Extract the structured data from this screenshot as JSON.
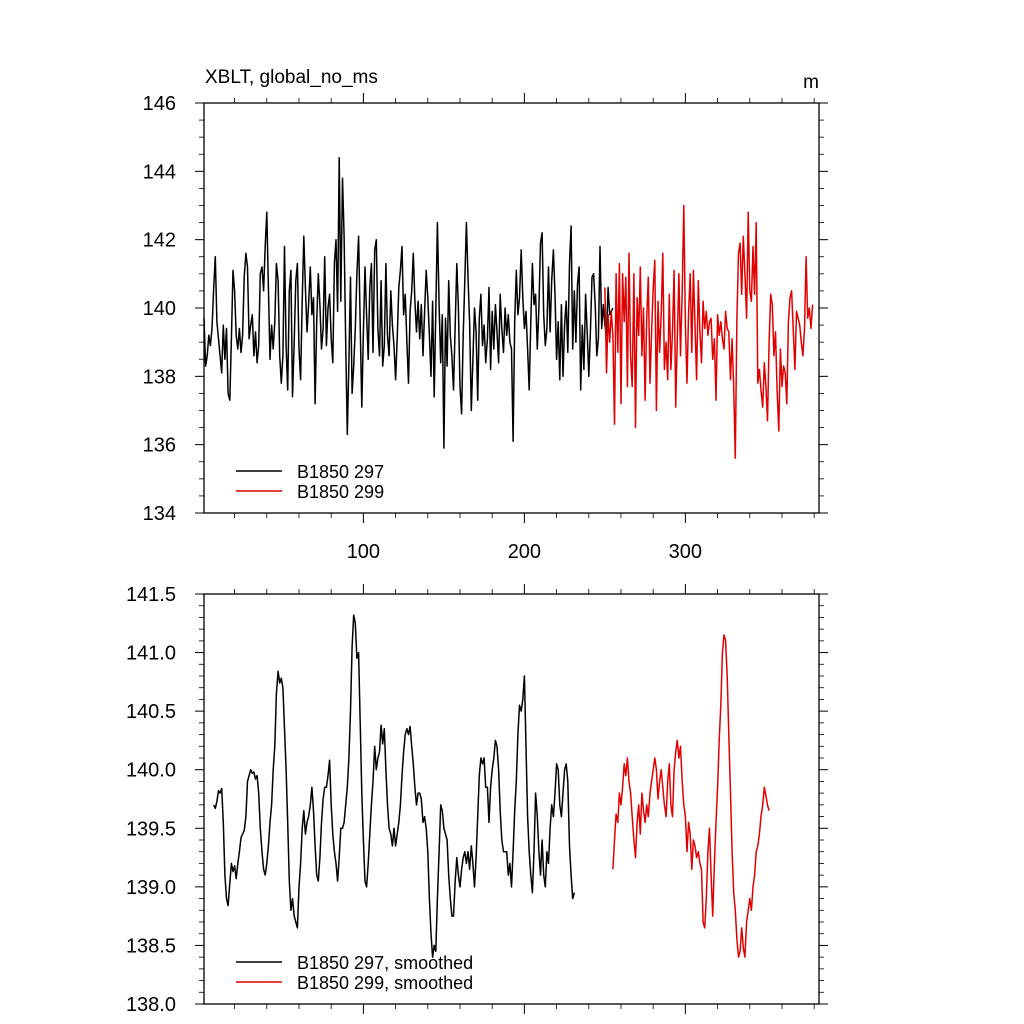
{
  "colors": {
    "series_a": "#000000",
    "series_b": "#e00000",
    "axis": "#000000"
  },
  "chart_data": [
    {
      "type": "line",
      "title": "XBLT, global_no_ms",
      "units": "m",
      "xlim": [
        1,
        383
      ],
      "ylim": [
        134,
        146
      ],
      "xticks": [
        100,
        200,
        300
      ],
      "xtick_labels": [
        "100",
        "200",
        "300"
      ],
      "yticks": [
        134,
        136,
        138,
        140,
        142,
        144,
        146
      ],
      "ytick_labels": [
        "134",
        "136",
        "138",
        "140",
        "142",
        "144",
        "146"
      ],
      "legend_position": "bottom-left",
      "series": [
        {
          "name": "B1850 297",
          "color": "#000000",
          "x_start": 1,
          "values": [
            139.7,
            138.3,
            138.6,
            139.2,
            138.9,
            139.4,
            140.6,
            141.5,
            139.6,
            139.1,
            138.6,
            138.1,
            139.5,
            138.5,
            139.4,
            137.5,
            137.3,
            139.1,
            141.1,
            140.5,
            139.2,
            138.8,
            139.4,
            138.7,
            139.2,
            140.9,
            141.6,
            141.2,
            139.1,
            139.5,
            139.8,
            138.6,
            139.3,
            138.4,
            138.9,
            141.0,
            141.2,
            140.5,
            141.8,
            142.8,
            140.6,
            138.5,
            139.5,
            138.8,
            139.6,
            141.3,
            140.8,
            138.6,
            137.8,
            138.6,
            141.8,
            138.9,
            137.6,
            140.5,
            141.1,
            137.4,
            139.0,
            140.8,
            141.3,
            138.8,
            137.9,
            140.2,
            142.1,
            140.6,
            139.3,
            140.1,
            141.2,
            139.8,
            140.3,
            137.2,
            139.6,
            141.0,
            140.1,
            138.8,
            139.4,
            141.5,
            138.9,
            140.0,
            140.4,
            139.1,
            138.4,
            141.3,
            142.0,
            139.9,
            144.4,
            140.2,
            143.8,
            142.1,
            139.0,
            136.3,
            138.4,
            140.9,
            137.5,
            138.3,
            139.4,
            141.0,
            142.1,
            139.5,
            137.1,
            139.3,
            141.2,
            139.8,
            138.5,
            140.6,
            141.3,
            138.7,
            141.7,
            142.0,
            139.4,
            138.6,
            140.8,
            138.3,
            138.9,
            141.3,
            139.2,
            138.6,
            140.5,
            139.5,
            138.9,
            137.9,
            139.1,
            140.6,
            141.1,
            141.8,
            139.8,
            140.4,
            139.0,
            137.8,
            139.9,
            140.5,
            141.6,
            140.2,
            139.3,
            140.2,
            139.1,
            140.1,
            138.6,
            139.9,
            141.1,
            140.3,
            139.2,
            138.0,
            140.2,
            137.4,
            139.9,
            142.5,
            140.1,
            138.4,
            139.8,
            135.9,
            139.7,
            138.3,
            140.8,
            139.2,
            138.6,
            137.6,
            139.5,
            141.3,
            140.0,
            137.7,
            136.9,
            139.2,
            140.8,
            142.5,
            140.9,
            139.6,
            137.0,
            138.5,
            140.0,
            139.3,
            137.3,
            139.7,
            140.4,
            138.9,
            139.5,
            138.4,
            139.1,
            140.6,
            138.2,
            139.9,
            138.8,
            140.1,
            139.3,
            138.4,
            140.4,
            139.4,
            138.7,
            140.0,
            139.2,
            139.8,
            139.0,
            138.8,
            136.1,
            139.6,
            141.1,
            139.8,
            140.3,
            141.7,
            140.3,
            139.4,
            139.9,
            138.8,
            137.6,
            139.6,
            141.3,
            140.1,
            140.4,
            138.8,
            140.0,
            141.9,
            142.2,
            139.8,
            138.9,
            139.4,
            141.2,
            139.3,
            140.8,
            141.7,
            140.4,
            138.5,
            139.6,
            137.9,
            140.1,
            138.0,
            139.5,
            140.2,
            138.7,
            141.3,
            142.4,
            138.8,
            140.5,
            139.0,
            140.7,
            141.2,
            137.6,
            139.5,
            138.2,
            140.4,
            139.3,
            138.0,
            139.3,
            140.9,
            141.0,
            140.1,
            138.6,
            139.1,
            141.8,
            139.4,
            140.1,
            139.5,
            139.2,
            140.6,
            139.8,
            139.9,
            140.0
          ]
        },
        {
          "name": "B1850 299",
          "color": "#e00000",
          "x_start": 250,
          "values": [
            140.6,
            138.1,
            139.8,
            139.0,
            139.9,
            139.2,
            136.6,
            141.0,
            138.7,
            141.3,
            137.2,
            141.0,
            139.6,
            140.9,
            137.7,
            141.6,
            138.6,
            137.7,
            141.0,
            136.5,
            140.3,
            139.2,
            141.2,
            138.6,
            140.0,
            137.3,
            139.7,
            140.9,
            137.8,
            139.3,
            140.6,
            141.4,
            137.0,
            140.2,
            138.7,
            139.8,
            141.6,
            138.2,
            139.0,
            137.9,
            140.4,
            138.2,
            139.3,
            141.1,
            137.1,
            139.1,
            141.0,
            138.6,
            140.5,
            143.0,
            139.5,
            137.8,
            139.9,
            141.0,
            138.7,
            141.1,
            139.5,
            137.9,
            140.8,
            139.3,
            138.4,
            140.2,
            139.4,
            139.9,
            139.2,
            139.6,
            139.7,
            138.5,
            139.1,
            137.3,
            139.8,
            139.2,
            139.6,
            139.1,
            138.8,
            139.9,
            139.4,
            139.3,
            137.9,
            139.1,
            137.7,
            135.6,
            139.7,
            141.6,
            141.9,
            140.4,
            142.1,
            141.0,
            139.7,
            142.8,
            140.5,
            140.2,
            141.8,
            140.4,
            142.5,
            137.8,
            138.2,
            137.6,
            137.1,
            138.4,
            137.7,
            136.7,
            139.0,
            140.4,
            140.1,
            138.6,
            139.3,
            137.6,
            136.4,
            138.8,
            137.7,
            138.3,
            138.1,
            137.2,
            139.6,
            140.3,
            140.5,
            139.4,
            138.2,
            139.9,
            139.7,
            139.5,
            139.0,
            138.6,
            139.4,
            141.5,
            139.7,
            140.0,
            139.4,
            140.1
          ]
        }
      ]
    },
    {
      "type": "line",
      "xlim": [
        1,
        383
      ],
      "ylim": [
        138.0,
        141.5
      ],
      "xticks": [
        100,
        200,
        300
      ],
      "yticks": [
        138.0,
        138.5,
        139.0,
        139.5,
        140.0,
        140.5,
        141.0,
        141.5
      ],
      "ytick_labels": [
        "138.0",
        "138.5",
        "139.0",
        "139.5",
        "140.0",
        "140.5",
        "141.0",
        "141.5"
      ],
      "legend_position": "bottom-left",
      "series": [
        {
          "name": "B1850 297, smoothed",
          "color": "#000000",
          "x_start": 7,
          "values": [
            139.7,
            139.67,
            139.73,
            139.82,
            139.8,
            139.84,
            139.55,
            139.1,
            138.9,
            138.84,
            139.03,
            139.2,
            139.13,
            139.18,
            139.07,
            139.2,
            139.3,
            139.42,
            139.45,
            139.48,
            139.6,
            139.9,
            139.95,
            140.0,
            139.97,
            139.98,
            139.92,
            139.95,
            139.8,
            139.5,
            139.3,
            139.15,
            139.1,
            139.2,
            139.35,
            139.55,
            139.7,
            140.0,
            140.2,
            140.65,
            140.84,
            140.74,
            140.78,
            140.7,
            140.35,
            140.0,
            139.55,
            139.05,
            138.8,
            138.9,
            138.75,
            138.7,
            138.65,
            139.0,
            139.2,
            139.5,
            139.65,
            139.45,
            139.55,
            139.6,
            139.7,
            139.85,
            139.65,
            139.35,
            139.1,
            139.05,
            139.25,
            139.55,
            139.75,
            139.85,
            139.85,
            139.95,
            140.08,
            139.7,
            139.45,
            139.3,
            139.2,
            139.05,
            139.25,
            139.5,
            139.5,
            139.55,
            139.7,
            139.85,
            140.1,
            140.5,
            141.05,
            141.32,
            141.25,
            140.95,
            141.0,
            140.4,
            139.8,
            139.4,
            139.05,
            139.0,
            139.2,
            139.45,
            139.7,
            139.9,
            140.2,
            140.0,
            140.1,
            140.15,
            140.38,
            140.22,
            140.35,
            140.0,
            139.7,
            139.5,
            139.45,
            139.35,
            139.5,
            139.35,
            139.45,
            139.55,
            139.7,
            139.95,
            140.15,
            140.3,
            140.35,
            140.3,
            140.37,
            140.2,
            140.05,
            139.85,
            139.7,
            139.8,
            139.8,
            139.75,
            139.55,
            139.6,
            139.5,
            139.3,
            138.9,
            138.6,
            138.4,
            138.5,
            138.45,
            138.9,
            139.3,
            139.7,
            139.65,
            139.5,
            139.45,
            139.4,
            139.1,
            138.9,
            138.75,
            138.75,
            139.05,
            139.25,
            139.1,
            139.0,
            139.15,
            139.25,
            139.3,
            139.2,
            139.3,
            139.15,
            139.35,
            139.2,
            139.0,
            139.25,
            139.6,
            139.95,
            140.1,
            140.05,
            140.1,
            139.85,
            139.85,
            139.55,
            139.85,
            140.0,
            140.1,
            140.25,
            140.2,
            140.0,
            139.65,
            139.4,
            139.3,
            139.3,
            139.3,
            139.1,
            139.2,
            139.0,
            139.3,
            139.65,
            139.9,
            140.3,
            140.55,
            140.5,
            140.6,
            140.8,
            140.2,
            139.6,
            139.3,
            139.1,
            138.95,
            139.3,
            139.8,
            139.6,
            139.3,
            139.1,
            139.4,
            139.1,
            139.0,
            139.3,
            139.2,
            139.5,
            139.7,
            139.6,
            139.8,
            140.05,
            140.0,
            139.7,
            139.6,
            139.8,
            140.0,
            140.05,
            139.9,
            139.35,
            139.1,
            138.9,
            138.95
          ]
        },
        {
          "name": "B1850 299, smoothed",
          "color": "#e00000",
          "x_start": 255,
          "values": [
            139.15,
            139.4,
            139.62,
            139.55,
            139.8,
            139.7,
            139.85,
            140.05,
            139.95,
            140.1,
            139.9,
            139.8,
            139.6,
            139.4,
            139.25,
            139.55,
            139.7,
            139.45,
            139.8,
            139.65,
            139.55,
            139.7,
            139.6,
            139.8,
            139.9,
            140.0,
            140.1,
            140.0,
            139.75,
            139.9,
            140.0,
            139.85,
            139.7,
            139.6,
            139.9,
            140.05,
            139.7,
            139.6,
            140.0,
            140.15,
            140.25,
            140.1,
            140.2,
            139.9,
            139.7,
            139.6,
            139.3,
            139.55,
            139.45,
            139.15,
            139.4,
            139.35,
            139.25,
            139.3,
            139.2,
            139.15,
            138.7,
            138.65,
            138.9,
            139.3,
            139.5,
            139.1,
            138.75,
            139.2,
            139.55,
            139.85,
            140.25,
            140.55,
            141.0,
            141.15,
            141.1,
            140.8,
            140.3,
            139.8,
            139.3,
            138.95,
            138.8,
            138.55,
            138.4,
            138.45,
            138.65,
            138.48,
            138.4,
            138.7,
            138.8,
            138.9,
            138.8,
            139.0,
            139.1,
            139.3,
            139.35,
            139.45,
            139.6,
            139.7,
            139.85,
            139.78,
            139.7,
            139.65
          ]
        }
      ]
    }
  ]
}
